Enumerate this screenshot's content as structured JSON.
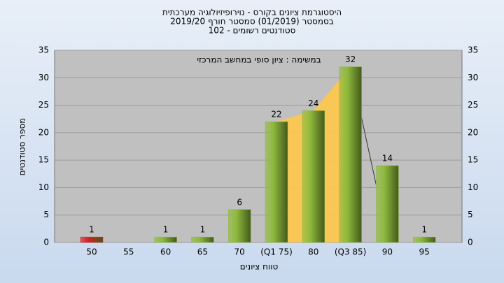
{
  "chart_data": {
    "type": "bar",
    "title": [
      "היסטוגרמת ציונים בקורס - נוירופיזיולוגיה מערכתית",
      "בסמסטר  (01/2019)  סמסטר חורף 2019/20",
      "סטודנטים רשומים - 102"
    ],
    "annotation": "במשימה : ציון סופי במחשב המרכזי",
    "x_label": "טווח ציונים",
    "y_label": "מספר סטודנטים",
    "categories": [
      "50",
      "55",
      "60",
      "65",
      "70",
      "(Q1 75)",
      "80",
      "(Q3 85)",
      "90",
      "95"
    ],
    "values": [
      1,
      null,
      1,
      1,
      6,
      22,
      24,
      32,
      14,
      1
    ],
    "colors": [
      "#d42020",
      "#8fba3c",
      "#8fba3c",
      "#8fba3c",
      "#8fba3c",
      "#8fba3c",
      "#8fba3c",
      "#8fba3c",
      "#8fba3c",
      "#8fba3c"
    ],
    "quartile_color": "#ffc84a",
    "ylim": [
      0,
      35
    ],
    "yticks": [
      0,
      5,
      10,
      15,
      20,
      25,
      30,
      35
    ],
    "grid": true
  }
}
